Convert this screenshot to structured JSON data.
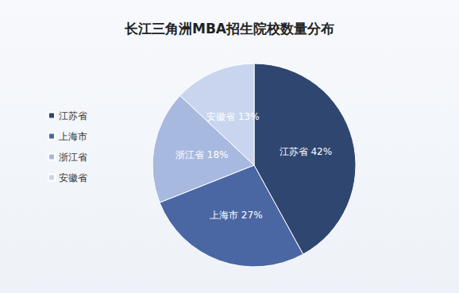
{
  "chart_data": {
    "type": "pie",
    "title": "长江三角洲MBA招生院校数量分布",
    "categories": [
      "江苏省",
      "上海市",
      "浙江省",
      "安徽省"
    ],
    "values": [
      42,
      27,
      18,
      13
    ],
    "value_labels": [
      "42%",
      "27%",
      "18%",
      "13%"
    ],
    "colors": [
      "#2f4671",
      "#4a67a3",
      "#a8b9e0",
      "#c9d5ee"
    ],
    "legend": "left",
    "data_labels": true
  }
}
